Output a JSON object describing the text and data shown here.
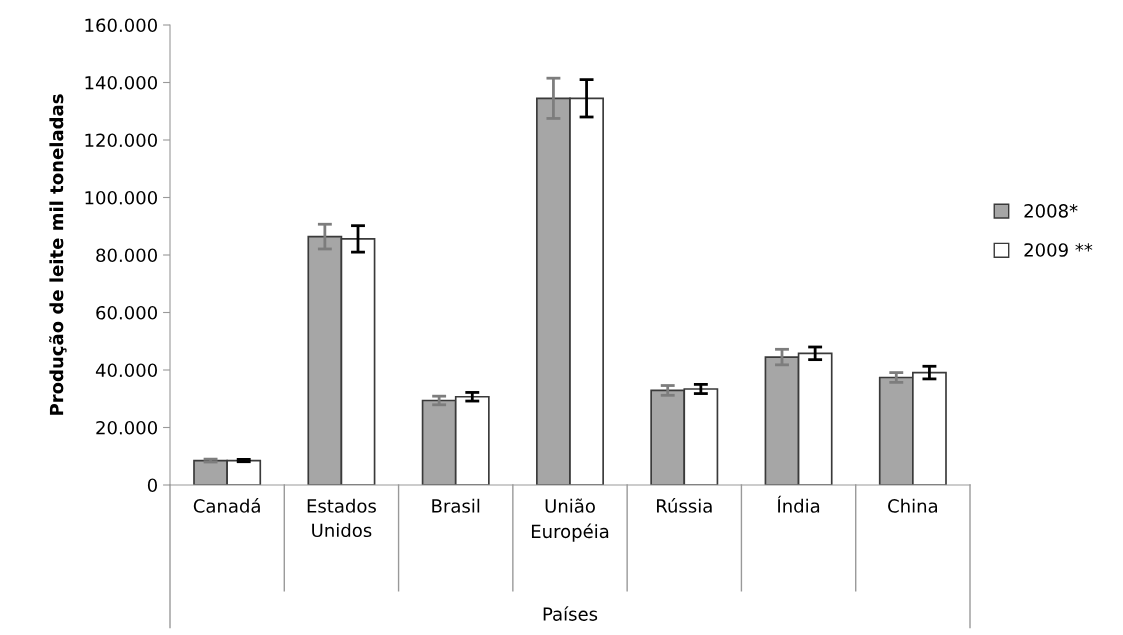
{
  "chart_data": {
    "type": "bar",
    "xlabel": "Países",
    "ylabel": "Produção de leite mil toneladas",
    "categories": [
      "Canadá",
      "Estados Unidos",
      "Brasil",
      "União Européia",
      "Rússia",
      "Índia",
      "China"
    ],
    "series": [
      {
        "name": "2008*",
        "color": "#a6a6a6",
        "values": [
          8500,
          86400,
          29400,
          134500,
          32900,
          44500,
          37400
        ],
        "errors": [
          500,
          4300,
          1500,
          7000,
          1700,
          2700,
          1700
        ]
      },
      {
        "name": "2009 **",
        "color": "#ffffff",
        "values": [
          8500,
          85600,
          30700,
          134500,
          33400,
          45800,
          39100
        ],
        "errors": [
          400,
          4600,
          1500,
          6500,
          1600,
          2200,
          2200
        ]
      }
    ],
    "ylim": [
      0,
      160000
    ],
    "yticks": [
      0,
      {
        "value": 20000,
        "label": "20.000"
      },
      {
        "value": 40000,
        "label": "40.000"
      },
      {
        "value": 60000,
        "label": "60.000"
      },
      {
        "value": 80000,
        "label": "80.000"
      },
      {
        "value": 100000,
        "label": "100.000"
      },
      {
        "value": 120000,
        "label": "120.000"
      },
      {
        "value": 140000,
        "label": "140.000"
      },
      {
        "value": 160000,
        "label": "160.000"
      }
    ],
    "grid": false,
    "legend": "right"
  }
}
